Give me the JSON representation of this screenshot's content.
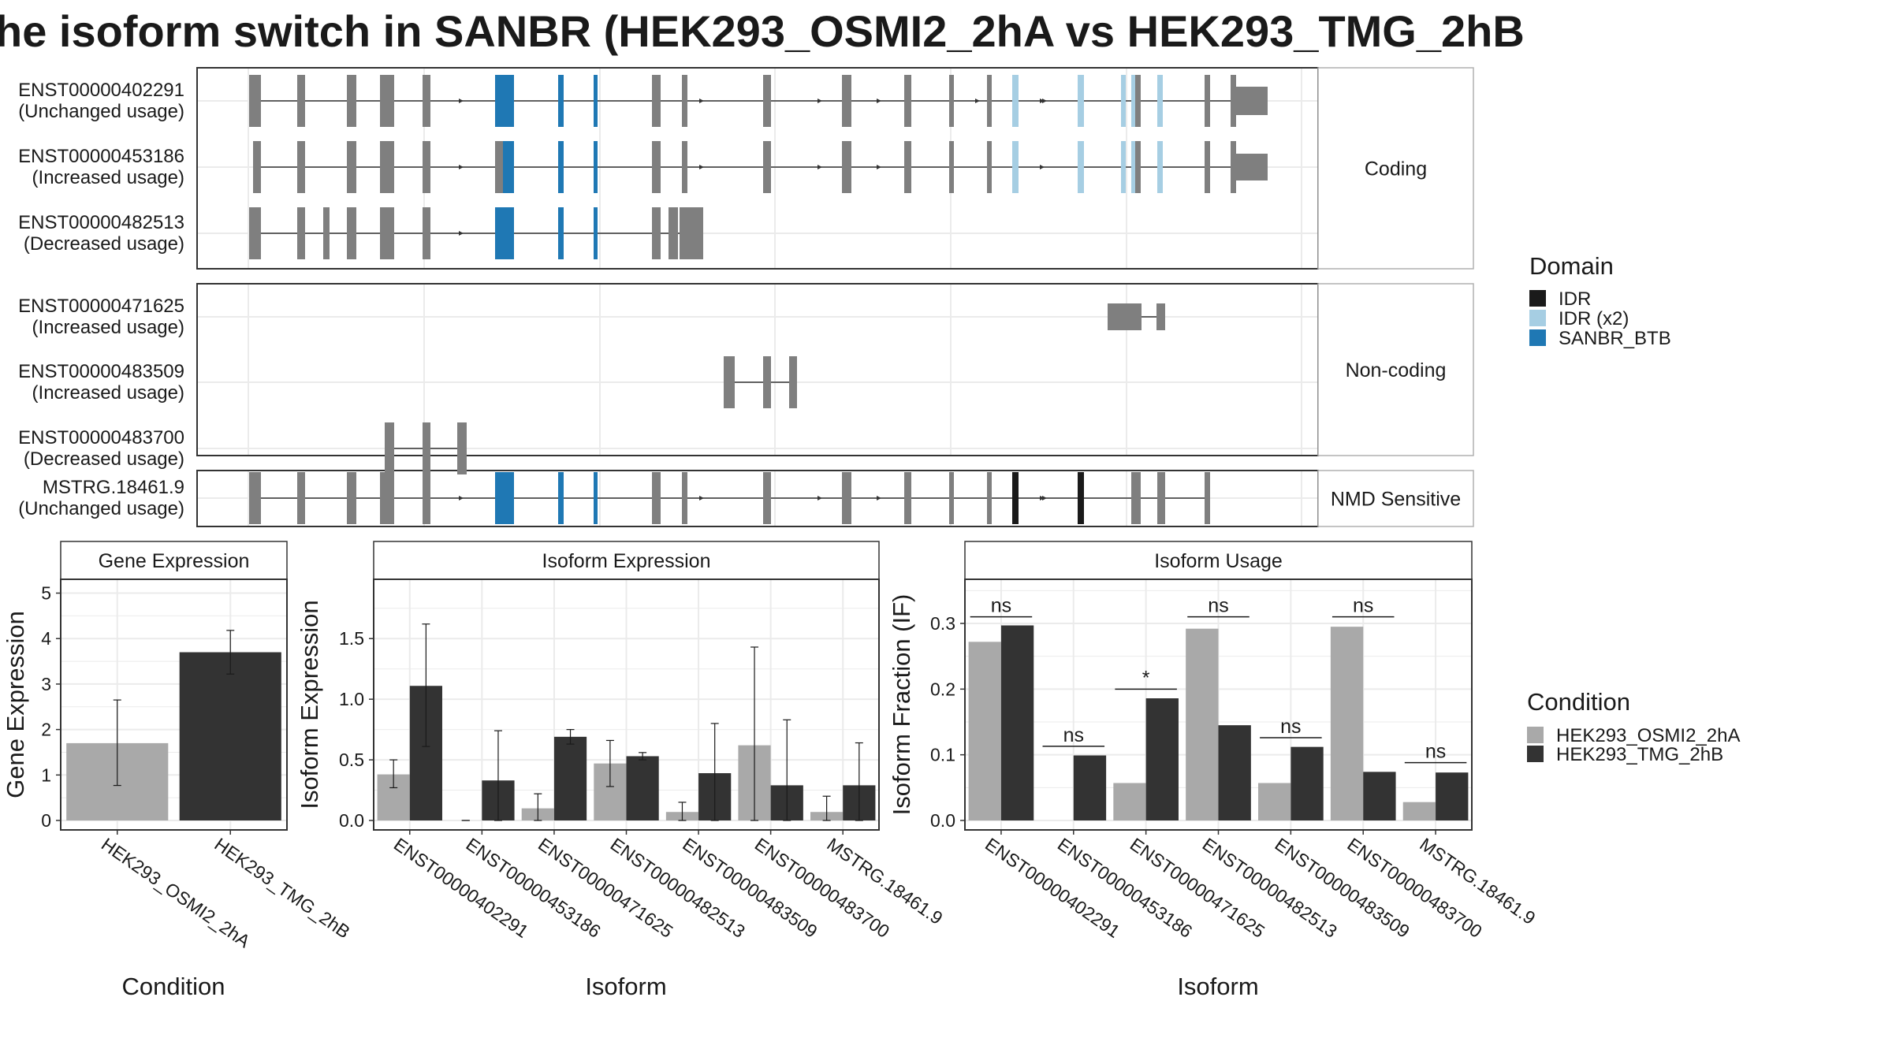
{
  "title": "he isoform switch in SANBR (HEK293_OSMI2_2hA vs HEK293_TMG_2hB",
  "chart_data": [
    {
      "type": "gene-structure",
      "facets": [
        "Coding",
        "Non-coding",
        "NMD Sensitive"
      ],
      "transcripts": [
        {
          "facet": "Coding",
          "id": "ENST00000402291",
          "usage": "(Unchanged usage)"
        },
        {
          "facet": "Coding",
          "id": "ENST00000453186",
          "usage": "(Increased usage)"
        },
        {
          "facet": "Coding",
          "id": "ENST00000482513",
          "usage": "(Decreased usage)"
        },
        {
          "facet": "Non-coding",
          "id": "ENST00000471625",
          "usage": "(Increased usage)"
        },
        {
          "facet": "Non-coding",
          "id": "ENST00000483509",
          "usage": "(Increased usage)"
        },
        {
          "facet": "Non-coding",
          "id": "ENST00000483700",
          "usage": "(Decreased usage)"
        },
        {
          "facet": "NMD Sensitive",
          "id": "MSTRG.18461.9",
          "usage": "(Unchanged usage)"
        }
      ],
      "legend": {
        "title": "Domain",
        "items": [
          {
            "label": "IDR",
            "color": "#1a1a1a"
          },
          {
            "label": "IDR (x2)",
            "color": "#a6cee3"
          },
          {
            "label": "SANBR_BTB",
            "color": "#1f78b4"
          }
        ]
      }
    },
    {
      "type": "bar",
      "title": "Gene Expression",
      "xlabel": "Condition",
      "ylabel": "Gene Expression",
      "ylim": [
        0,
        5.2
      ],
      "yticks": [
        "0",
        "1",
        "2",
        "3",
        "4",
        "5"
      ],
      "categories": [
        "HEK293_OSMI2_2hA",
        "HEK293_TMG_2hB"
      ],
      "values": [
        1.7,
        3.7
      ],
      "errors": [
        [
          0.77,
          2.65
        ],
        [
          3.22,
          4.18
        ]
      ]
    },
    {
      "type": "bar",
      "title": "Isoform Expression",
      "xlabel": "Isoform",
      "ylabel": "Isoform Expression",
      "ylim": [
        0,
        1.95
      ],
      "yticks": [
        "0.0",
        "0.5",
        "1.0",
        "1.5"
      ],
      "categories": [
        "ENST00000402291",
        "ENST00000453186",
        "ENST00000471625",
        "ENST00000482513",
        "ENST00000483509",
        "ENST00000483700",
        "MSTRG.18461.9"
      ],
      "series": [
        {
          "name": "HEK293_OSMI2_2hA",
          "values": [
            0.38,
            0.0,
            0.1,
            0.47,
            0.07,
            0.62,
            0.07
          ],
          "errors": [
            [
              0.27,
              0.5
            ],
            [
              0,
              0
            ],
            [
              0,
              0.22
            ],
            [
              0.28,
              0.66
            ],
            [
              0,
              0.15
            ],
            [
              0,
              1.43
            ],
            [
              0,
              0.2
            ]
          ]
        },
        {
          "name": "HEK293_TMG_2hB",
          "values": [
            1.11,
            0.33,
            0.69,
            0.53,
            0.39,
            0.29,
            0.29
          ],
          "errors": [
            [
              0.61,
              1.62
            ],
            [
              0,
              0.74
            ],
            [
              0.63,
              0.75
            ],
            [
              0.5,
              0.56
            ],
            [
              0,
              0.8
            ],
            [
              0,
              0.83
            ],
            [
              0,
              0.64
            ]
          ]
        }
      ]
    },
    {
      "type": "bar",
      "title": "Isoform Usage",
      "xlabel": "Isoform",
      "ylabel": "Isoform Fraction (IF)",
      "ylim": [
        0,
        0.36
      ],
      "yticks": [
        "0.0",
        "0.1",
        "0.2",
        "0.3"
      ],
      "categories": [
        "ENST00000402291",
        "ENST00000453186",
        "ENST00000471625",
        "ENST00000482513",
        "ENST00000483509",
        "ENST00000483700",
        "MSTRG.18461.9"
      ],
      "series": [
        {
          "name": "HEK293_OSMI2_2hA",
          "values": [
            0.272,
            0.0,
            0.057,
            0.292,
            0.057,
            0.295,
            0.028
          ]
        },
        {
          "name": "HEK293_TMG_2hB",
          "values": [
            0.297,
            0.099,
            0.186,
            0.145,
            0.112,
            0.074,
            0.073
          ]
        }
      ],
      "significance": [
        "ns",
        "ns",
        "*",
        "ns",
        "ns",
        "ns",
        "ns"
      ],
      "sig_heights": [
        0.31,
        0.113,
        0.2,
        0.31,
        0.126,
        0.31,
        0.088
      ]
    }
  ],
  "condition_legend": {
    "title": "Condition",
    "items": [
      {
        "label": "HEK293_OSMI2_2hA",
        "color": "#a9a9a9"
      },
      {
        "label": "HEK293_TMG_2hB",
        "color": "#333333"
      }
    ]
  }
}
